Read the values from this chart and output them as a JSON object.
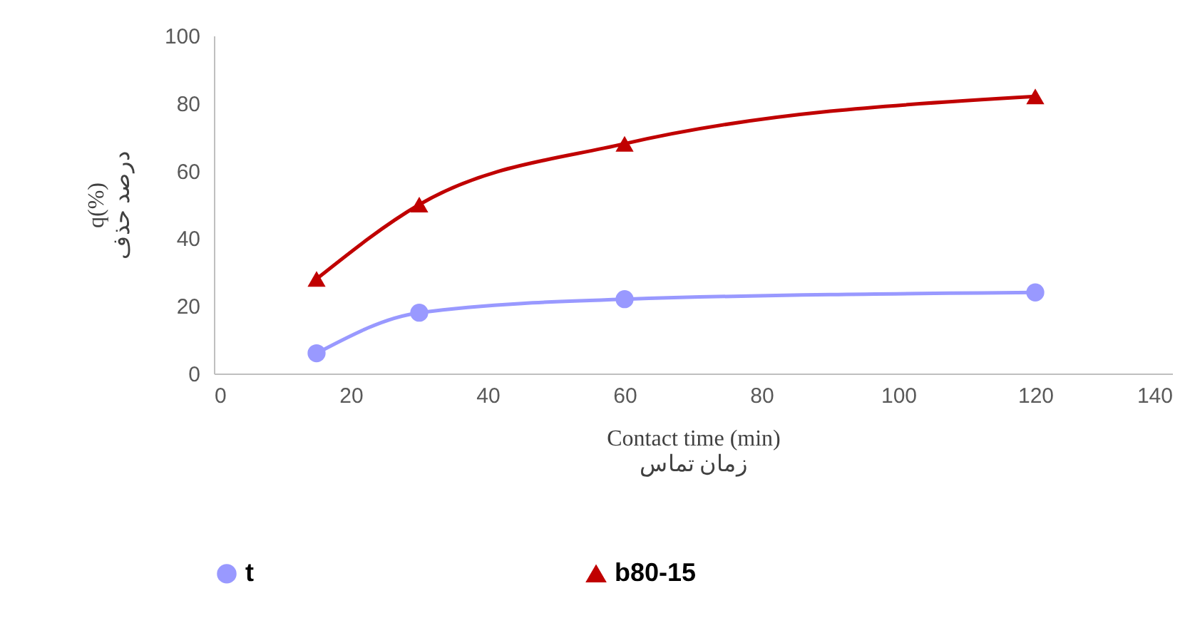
{
  "chart_data": {
    "type": "line",
    "xlabel": "Contact time  (min)\nزمان تماس",
    "ylabel": "q(%)\nدرصد حذف",
    "x": [
      15,
      30,
      60,
      120
    ],
    "series": [
      {
        "name": "t",
        "color": "#9999ff",
        "marker": "circle",
        "values": [
          6,
          18,
          22,
          24
        ]
      },
      {
        "name": "b80-15",
        "color": "#c00000",
        "marker": "triangle",
        "values": [
          28,
          50,
          68,
          82
        ]
      }
    ],
    "xlim": [
      0,
      140
    ],
    "xticks": [
      0,
      20,
      40,
      60,
      80,
      100,
      120,
      140
    ],
    "ylim": [
      0,
      100
    ],
    "yticks": [
      0,
      20,
      40,
      60,
      80,
      100
    ],
    "grid": false,
    "legend": "bottom"
  }
}
